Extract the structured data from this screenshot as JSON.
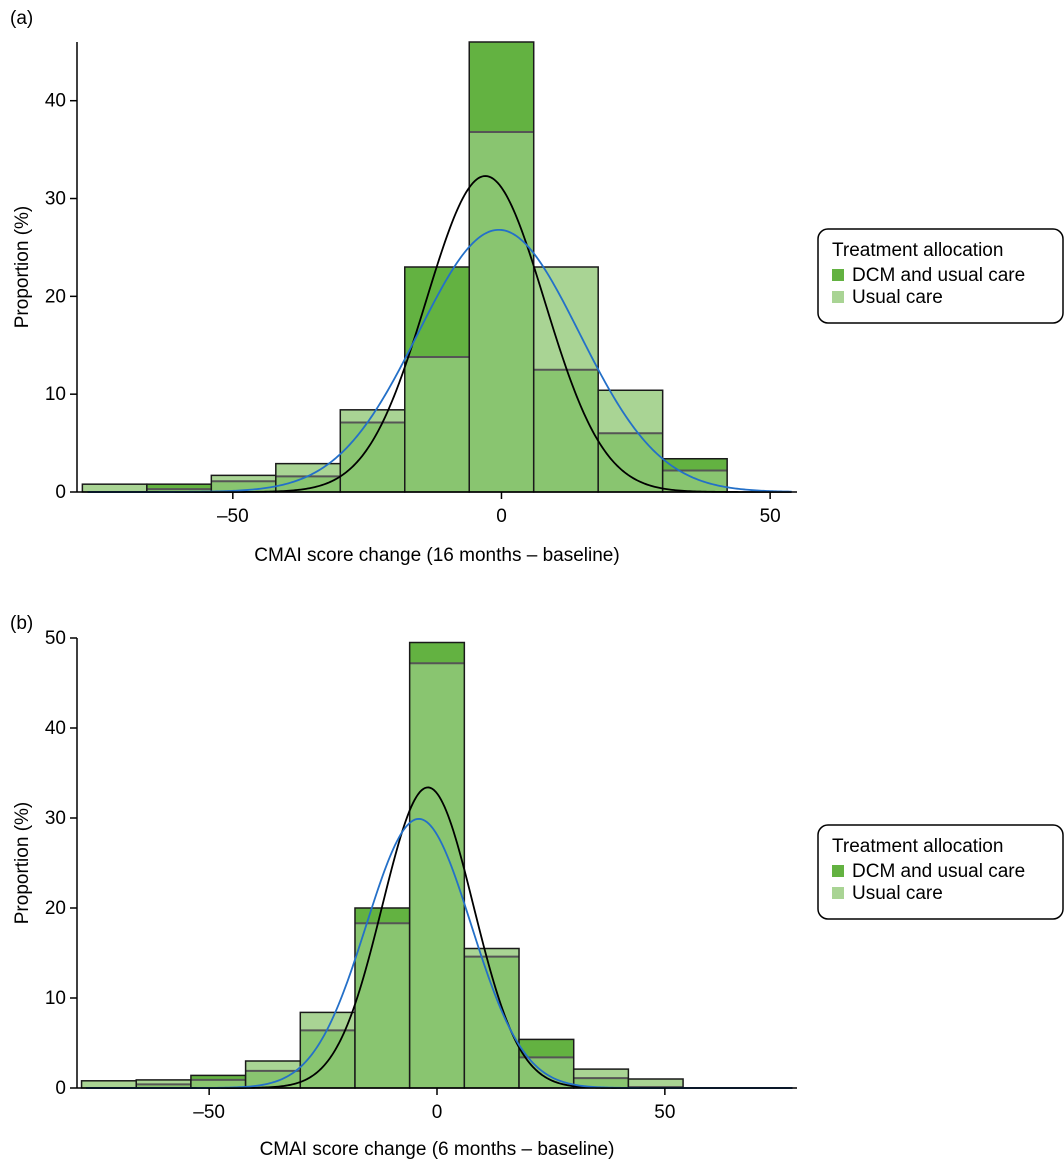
{
  "colors": {
    "dcm": "#63b241",
    "usual": "#a9d494",
    "overlap": "#89c570",
    "curve_dcm": "#000000",
    "curve_usual": "#2470c8"
  },
  "legend": {
    "title": "Treatment allocation",
    "items": [
      "DCM and usual care",
      "Usual care"
    ]
  },
  "chart_data": [
    {
      "type": "bar",
      "panel_label": "(a)",
      "xlabel": "CMAI score change (16 months – baseline)",
      "ylabel": "Proportion (%)",
      "xlim": [
        -79,
        55
      ],
      "ylim": [
        0,
        46
      ],
      "xticks": [
        -50,
        0,
        50
      ],
      "xtick_labels": [
        "–50",
        "0",
        "50"
      ],
      "yticks": [
        0,
        10,
        20,
        30,
        40
      ],
      "ytick_labels": [
        "0",
        "10",
        "20",
        "30",
        "40"
      ],
      "bin_edges": [
        -78,
        -66,
        -54,
        -42,
        -30,
        -18,
        -6,
        6,
        18,
        30,
        42
      ],
      "series": [
        {
          "name": "DCM and usual care",
          "values": [
            0,
            0.8,
            1.1,
            1.6,
            7.1,
            23.0,
            46.0,
            12.5,
            6.0,
            3.4
          ]
        },
        {
          "name": "Usual care",
          "values": [
            0.8,
            0.3,
            1.7,
            2.9,
            8.4,
            13.8,
            36.8,
            23.0,
            10.4,
            2.2
          ]
        }
      ],
      "curves": [
        {
          "series": "DCM and usual care",
          "mean": -3,
          "sd": 11,
          "peak": 32.3
        },
        {
          "series": "Usual care",
          "mean": -0.5,
          "sd": 15,
          "peak": 26.8
        }
      ]
    },
    {
      "type": "bar",
      "panel_label": "(b)",
      "xlabel": "CMAI score change (6 months – baseline)",
      "ylabel": "Proportion (%)",
      "xlim": [
        -79,
        79
      ],
      "ylim": [
        0,
        50
      ],
      "xticks": [
        -50,
        0,
        50
      ],
      "xtick_labels": [
        "–50",
        "0",
        "50"
      ],
      "yticks": [
        0,
        10,
        20,
        30,
        40,
        50
      ],
      "ytick_labels": [
        "0",
        "10",
        "20",
        "30",
        "40",
        "50"
      ],
      "bin_edges": [
        -78,
        -66,
        -54,
        -42,
        -30,
        -18,
        -6,
        6,
        18,
        30,
        42,
        54
      ],
      "series": [
        {
          "name": "DCM and usual care",
          "values": [
            0,
            0.4,
            1.4,
            1.9,
            6.4,
            20.0,
            49.5,
            14.6,
            5.4,
            1.1,
            0.1
          ]
        },
        {
          "name": "Usual care",
          "values": [
            0.8,
            0.9,
            0.9,
            3.0,
            8.4,
            18.3,
            47.2,
            15.5,
            3.4,
            2.1,
            1.0
          ]
        }
      ],
      "curves": [
        {
          "series": "DCM and usual care",
          "mean": -2,
          "sd": 10,
          "peak": 33.4
        },
        {
          "series": "Usual care",
          "mean": -4,
          "sd": 11.5,
          "peak": 29.9
        }
      ]
    }
  ]
}
